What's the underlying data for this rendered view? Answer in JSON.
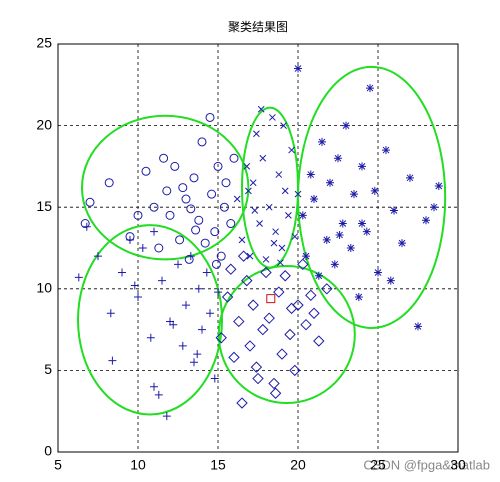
{
  "chart_data": {
    "type": "scatter",
    "title": "聚类结果图",
    "watermark": "CSDN @fpga&matlab",
    "xlim": [
      5,
      30
    ],
    "xticks": [
      5,
      10,
      15,
      20,
      25,
      30
    ],
    "ylim": [
      0,
      25
    ],
    "yticks": [
      0,
      5,
      10,
      15,
      20,
      25
    ],
    "grid": true,
    "series": [
      {
        "marker": "o",
        "color": "#1c1ca8",
        "x": [
          7.0,
          6.7,
          8.2,
          9.5,
          10.0,
          10.5,
          11.0,
          11.3,
          11.8,
          12.0,
          12.3,
          12.6,
          13.0,
          13.2,
          13.5,
          13.8,
          14.0,
          14.2,
          14.5,
          14.6,
          14.8,
          15.0,
          15.2,
          15.5,
          15.8,
          16.0,
          12.8,
          13.6,
          11.6,
          14.9,
          15.4,
          13.3
        ],
        "values": [
          15.3,
          14.0,
          16.5,
          13.2,
          14.5,
          17.2,
          15.0,
          12.5,
          16.0,
          14.5,
          17.5,
          13.0,
          15.5,
          11.8,
          16.8,
          14.2,
          19.0,
          12.8,
          20.5,
          15.8,
          13.5,
          17.5,
          12.0,
          16.5,
          14.0,
          18.0,
          16.2,
          13.6,
          18.0,
          11.5,
          15.0,
          14.9
        ]
      },
      {
        "marker": "+",
        "color": "#1c1ca8",
        "x": [
          6.3,
          6.8,
          7.5,
          8.3,
          8.4,
          9.0,
          9.5,
          10.0,
          10.3,
          10.8,
          11.0,
          11.3,
          11.5,
          11.8,
          12.0,
          12.5,
          12.8,
          13.0,
          13.3,
          13.5,
          13.8,
          14.0,
          14.3,
          14.5,
          14.8,
          15.0,
          11.0,
          12.2,
          9.8,
          13.7
        ],
        "values": [
          10.7,
          13.8,
          12.0,
          8.5,
          5.6,
          11.0,
          13.0,
          9.5,
          12.5,
          7.0,
          4.0,
          3.5,
          10.5,
          2.2,
          8.0,
          11.5,
          6.5,
          9.0,
          12.0,
          5.5,
          10.0,
          7.5,
          11.0,
          8.5,
          4.5,
          9.8,
          13.5,
          7.8,
          10.2,
          6.0
        ]
      },
      {
        "marker": "d",
        "color": "#1c1ca8",
        "x": [
          15.2,
          15.6,
          16.0,
          16.3,
          16.5,
          16.8,
          17.0,
          17.2,
          17.5,
          17.8,
          18.0,
          18.2,
          18.5,
          18.8,
          19.0,
          19.2,
          19.5,
          19.8,
          20.0,
          20.3,
          20.5,
          21.0,
          21.3,
          21.8,
          16.6,
          17.4,
          18.6,
          19.6,
          15.8,
          20.8
        ],
        "values": [
          7.0,
          9.5,
          5.8,
          8.0,
          3.0,
          10.5,
          6.5,
          9.0,
          4.5,
          7.5,
          11.0,
          8.2,
          4.2,
          9.8,
          6.0,
          10.8,
          7.2,
          5.0,
          9.0,
          11.5,
          7.8,
          8.5,
          6.8,
          10.0,
          12.0,
          5.2,
          3.6,
          8.8,
          11.2,
          9.6
        ]
      },
      {
        "marker": "x",
        "color": "#1c1ca8",
        "x": [
          16.2,
          16.5,
          16.8,
          17.0,
          17.2,
          17.4,
          17.6,
          17.8,
          18.0,
          18.2,
          18.4,
          18.6,
          18.8,
          19.0,
          19.2,
          19.4,
          19.6,
          19.8,
          20.0,
          17.3,
          18.5,
          19.1,
          16.9,
          18.9,
          17.7
        ],
        "values": [
          15.5,
          13.0,
          17.5,
          12.0,
          16.5,
          19.5,
          14.0,
          18.0,
          11.8,
          15.0,
          20.5,
          13.5,
          17.0,
          12.5,
          16.0,
          14.5,
          18.5,
          13.2,
          15.8,
          14.8,
          12.8,
          20.0,
          16.0,
          11.6,
          21.0
        ]
      },
      {
        "marker": "*",
        "color": "#1c1ca8",
        "x": [
          20.0,
          20.3,
          20.5,
          20.8,
          21.0,
          21.3,
          21.5,
          21.8,
          22.0,
          22.3,
          22.5,
          22.8,
          23.0,
          23.3,
          23.5,
          23.8,
          24.0,
          24.3,
          24.5,
          24.8,
          25.0,
          25.5,
          26.0,
          26.5,
          27.0,
          27.5,
          28.0,
          28.5,
          28.8,
          24.0,
          22.6,
          25.8
        ],
        "values": [
          23.5,
          14.5,
          12.0,
          17.0,
          15.5,
          10.8,
          19.0,
          13.0,
          16.5,
          11.5,
          18.0,
          14.0,
          20.0,
          12.5,
          15.8,
          9.5,
          17.5,
          13.5,
          22.3,
          16.0,
          11.0,
          18.5,
          14.8,
          12.8,
          16.8,
          7.7,
          14.2,
          15.0,
          16.3,
          14.0,
          13.3,
          10.5
        ]
      },
      {
        "marker": "s",
        "color": "#d01010",
        "x": [
          18.3
        ],
        "values": [
          9.4
        ]
      }
    ],
    "ellipses": [
      {
        "cx": 11.7,
        "cy": 16.2,
        "rx": 5.2,
        "ry": 4.4,
        "color": "#22dd22"
      },
      {
        "cx": 10.75,
        "cy": 8.1,
        "rx": 4.5,
        "ry": 5.8,
        "color": "#22dd22"
      },
      {
        "cx": 19.3,
        "cy": 7.2,
        "rx": 4.25,
        "ry": 4.2,
        "color": "#22dd22"
      },
      {
        "cx": 18.25,
        "cy": 16.2,
        "rx": 1.75,
        "ry": 4.9,
        "color": "#22dd22"
      },
      {
        "cx": 24.6,
        "cy": 15.6,
        "rx": 4.6,
        "ry": 8.0,
        "color": "#22dd22"
      }
    ]
  }
}
